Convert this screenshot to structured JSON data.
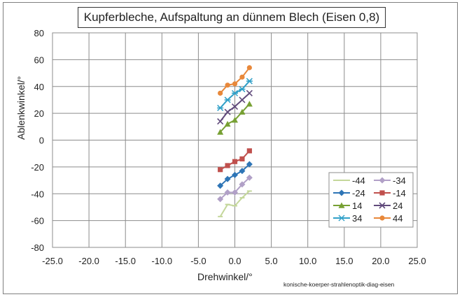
{
  "chart_data": {
    "type": "line",
    "title": "Kupferbleche, Aufspaltung an dünnem Blech (Eisen 0,8)",
    "xlabel": "Drehwinkel/°",
    "ylabel": "Ablenkwinkel/°",
    "xlim": [
      -25,
      25
    ],
    "ylim": [
      -80,
      80
    ],
    "xticks": [
      -25,
      -20,
      -15,
      -10,
      -5,
      0,
      5,
      10,
      15,
      20,
      25
    ],
    "xtick_labels": [
      "-25.0",
      "-20.0",
      "-15.0",
      "-10.0",
      "-5.0",
      "0.0",
      "5.0",
      "10.0",
      "15.0",
      "20.0",
      "25.0"
    ],
    "yticks": [
      -80,
      -60,
      -40,
      -20,
      0,
      20,
      40,
      60,
      80
    ],
    "ytick_labels": [
      "-80",
      "-60",
      "-40",
      "-20",
      "0",
      "20",
      "40",
      "60",
      "80"
    ],
    "grid": true,
    "legend_position": "bottom-right",
    "x": [
      -2,
      -1,
      0,
      1,
      2
    ],
    "series": [
      {
        "name": "-44",
        "color": "#c4d79b",
        "marker": "dash",
        "values": [
          -57,
          -48,
          -49,
          -43,
          -38
        ]
      },
      {
        "name": "-34",
        "color": "#b1a0c7",
        "marker": "diamond",
        "values": [
          -44,
          -39,
          -39,
          -33,
          -28
        ]
      },
      {
        "name": "-24",
        "color": "#2e75b6",
        "marker": "diamond",
        "values": [
          -34,
          -29,
          -26,
          -23,
          -18
        ]
      },
      {
        "name": "-14",
        "color": "#c0504d",
        "marker": "square",
        "values": [
          -22,
          -19,
          -16,
          -14,
          -8
        ]
      },
      {
        "name": "14",
        "color": "#77a033",
        "marker": "triangle",
        "values": [
          6,
          12,
          15,
          21,
          27
        ]
      },
      {
        "name": "24",
        "color": "#604a7b",
        "marker": "x",
        "values": [
          14,
          21,
          25,
          30,
          35
        ]
      },
      {
        "name": "34",
        "color": "#31a0c8",
        "marker": "star",
        "values": [
          24,
          30,
          35,
          38,
          44
        ]
      },
      {
        "name": "44",
        "color": "#e8883a",
        "marker": "circle",
        "values": [
          35,
          41,
          42,
          47,
          54
        ]
      }
    ]
  },
  "footnote": "konische-koerper-strahlenoptik-diag-eisen"
}
